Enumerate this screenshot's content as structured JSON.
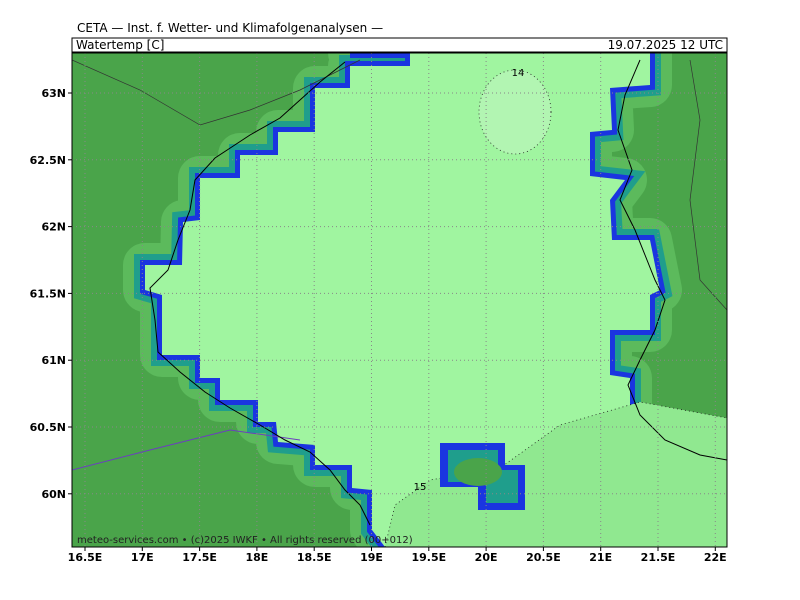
{
  "header": {
    "title": "CETA — Inst. f. Wetter- und Klimafolgenanalysen —",
    "parameter": "Watertemp [C]",
    "valid_time": "19.07.2025 12 UTC"
  },
  "map": {
    "lon_ticks": [
      {
        "value": 16.5,
        "label": "16.5E"
      },
      {
        "value": 17,
        "label": "17E"
      },
      {
        "value": 17.5,
        "label": "17.5E"
      },
      {
        "value": 18,
        "label": "18E"
      },
      {
        "value": 18.5,
        "label": "18.5E"
      },
      {
        "value": 19,
        "label": "19E"
      },
      {
        "value": 19.5,
        "label": "19.5E"
      },
      {
        "value": 20,
        "label": "20E"
      },
      {
        "value": 20.5,
        "label": "20.5E"
      },
      {
        "value": 21,
        "label": "21E"
      },
      {
        "value": 21.5,
        "label": "21.5E"
      },
      {
        "value": 22,
        "label": "22E"
      }
    ],
    "lat_ticks": [
      {
        "value": 63,
        "label": "63N"
      },
      {
        "value": 62.5,
        "label": "62.5N"
      },
      {
        "value": 62,
        "label": "62N"
      },
      {
        "value": 61.5,
        "label": "61.5N"
      },
      {
        "value": 61,
        "label": "61N"
      },
      {
        "value": 60.5,
        "label": "60.5N"
      },
      {
        "value": 60,
        "label": "60N"
      }
    ],
    "contour_labels": [
      "14",
      "15"
    ],
    "footer": "meteo-services.com • (c)2025 IWKF • All rights reserved (00+012)"
  }
}
